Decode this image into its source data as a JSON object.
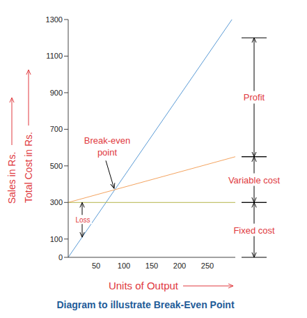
{
  "chart_data": {
    "type": "line",
    "title": "Diagram to illustrate Break-Even Point",
    "x_label": "Units of Output",
    "y_labels": [
      "Sales in Rs.",
      "Total Cost in Rs."
    ],
    "xlim": [
      0,
      300
    ],
    "xticks": [
      50,
      100,
      150,
      200,
      250
    ],
    "ylim": [
      0,
      1300
    ],
    "yticks": [
      0,
      100,
      300,
      500,
      700,
      900,
      1100,
      1300
    ],
    "grid": false,
    "series": [
      {
        "color": "#5b9bd5",
        "x": [
          0,
          294
        ],
        "values": [
          0,
          1300
        ]
      },
      {
        "color": "#f4a460",
        "x": [
          0,
          300
        ],
        "values": [
          300,
          550
        ]
      },
      {
        "color": "#b5b54a",
        "x": [
          0,
          300
        ],
        "values": [
          300,
          300
        ]
      }
    ],
    "annotations": [
      {
        "text": "Profit",
        "from": 550,
        "to": 1200
      },
      {
        "text": "Variable cost",
        "from": 300,
        "to": 550
      },
      {
        "text": "Fixed cost",
        "from": 0,
        "to": 300
      },
      {
        "text": "Loss",
        "x": 25,
        "from": 110,
        "to": 300
      },
      {
        "text": "Break-even point",
        "x": 70,
        "y": 605
      }
    ]
  }
}
